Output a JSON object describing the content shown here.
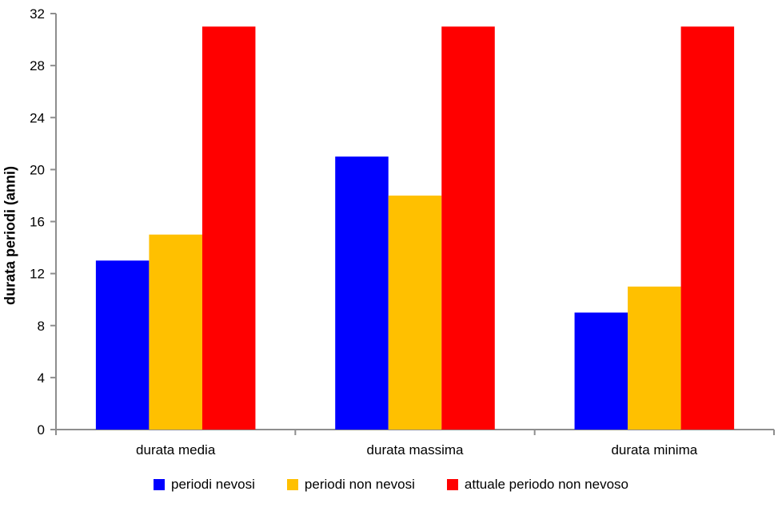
{
  "chart_data": {
    "type": "bar",
    "categories": [
      "durata media",
      "durata massima",
      "durata minima"
    ],
    "series": [
      {
        "name": "periodi nevosi",
        "color": "#0000FF",
        "values": [
          13,
          21,
          9
        ]
      },
      {
        "name": "periodi non nevosi",
        "color": "#FFC000",
        "values": [
          15,
          18,
          11
        ]
      },
      {
        "name": "attuale periodo non nevoso",
        "color": "#FF0000",
        "values": [
          31,
          31,
          31
        ]
      }
    ],
    "title": "",
    "xlabel": "",
    "ylabel": "durata periodi (anni)",
    "ylim": [
      0,
      32
    ],
    "ytick_step": 4,
    "grid": false,
    "legend_position": "bottom",
    "axis_color": "#8E8E8E",
    "text_color": "#000000",
    "background": "#FFFFFF"
  }
}
